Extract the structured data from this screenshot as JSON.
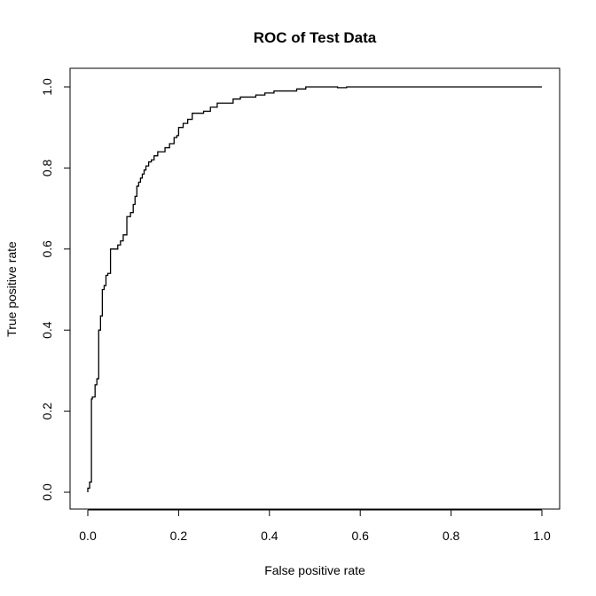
{
  "chart_data": {
    "type": "line",
    "title": "ROC of Test Data",
    "xlabel": "False positive rate",
    "ylabel": "True positive rate",
    "xlim": [
      0,
      1
    ],
    "ylim": [
      0,
      1
    ],
    "xticks": [
      "0.0",
      "0.2",
      "0.4",
      "0.6",
      "0.8",
      "1.0"
    ],
    "yticks": [
      "0.0",
      "0.2",
      "0.4",
      "0.6",
      "0.8",
      "1.0"
    ],
    "grid": false,
    "line_color": "#000000",
    "series": [
      {
        "x": [
          0.0,
          0.0,
          0.004,
          0.004,
          0.008,
          0.008,
          0.01,
          0.01,
          0.016,
          0.016,
          0.02,
          0.02,
          0.024,
          0.024,
          0.028,
          0.028,
          0.032,
          0.032,
          0.036,
          0.036,
          0.04,
          0.04,
          0.044,
          0.044,
          0.05,
          0.05,
          0.066,
          0.066,
          0.072,
          0.072,
          0.078,
          0.078,
          0.086,
          0.086,
          0.094,
          0.094,
          0.1,
          0.1,
          0.104,
          0.104,
          0.108,
          0.108,
          0.112,
          0.112,
          0.116,
          0.116,
          0.12,
          0.12,
          0.124,
          0.124,
          0.128,
          0.128,
          0.134,
          0.134,
          0.14,
          0.14,
          0.146,
          0.146,
          0.154,
          0.154,
          0.17,
          0.17,
          0.18,
          0.18,
          0.19,
          0.19,
          0.196,
          0.196,
          0.2,
          0.2,
          0.21,
          0.21,
          0.22,
          0.22,
          0.23,
          0.23,
          0.255,
          0.255,
          0.27,
          0.27,
          0.285,
          0.285,
          0.32,
          0.32,
          0.336,
          0.336,
          0.37,
          0.37,
          0.39,
          0.39,
          0.41,
          0.41,
          0.46,
          0.46,
          0.48,
          0.48,
          0.53,
          0.53,
          0.55,
          0.55,
          0.57,
          0.57,
          0.995,
          0.995,
          1.0
        ],
        "y": [
          0.0,
          0.01,
          0.01,
          0.025,
          0.025,
          0.23,
          0.23,
          0.235,
          0.235,
          0.265,
          0.265,
          0.28,
          0.28,
          0.4,
          0.4,
          0.435,
          0.435,
          0.5,
          0.5,
          0.51,
          0.51,
          0.535,
          0.535,
          0.54,
          0.54,
          0.6,
          0.6,
          0.61,
          0.61,
          0.62,
          0.62,
          0.635,
          0.635,
          0.68,
          0.68,
          0.69,
          0.69,
          0.71,
          0.71,
          0.73,
          0.73,
          0.755,
          0.755,
          0.765,
          0.765,
          0.775,
          0.775,
          0.785,
          0.785,
          0.795,
          0.795,
          0.805,
          0.805,
          0.815,
          0.815,
          0.82,
          0.82,
          0.83,
          0.83,
          0.84,
          0.84,
          0.85,
          0.85,
          0.86,
          0.86,
          0.875,
          0.875,
          0.88,
          0.88,
          0.9,
          0.9,
          0.91,
          0.91,
          0.92,
          0.92,
          0.935,
          0.935,
          0.94,
          0.94,
          0.95,
          0.95,
          0.96,
          0.96,
          0.97,
          0.97,
          0.975,
          0.975,
          0.98,
          0.98,
          0.985,
          0.985,
          0.99,
          0.99,
          0.995,
          0.995,
          1.0,
          1.0,
          1.0,
          1.0,
          0.998,
          0.998,
          1.0,
          1.0,
          1.0,
          1.0
        ]
      }
    ]
  }
}
